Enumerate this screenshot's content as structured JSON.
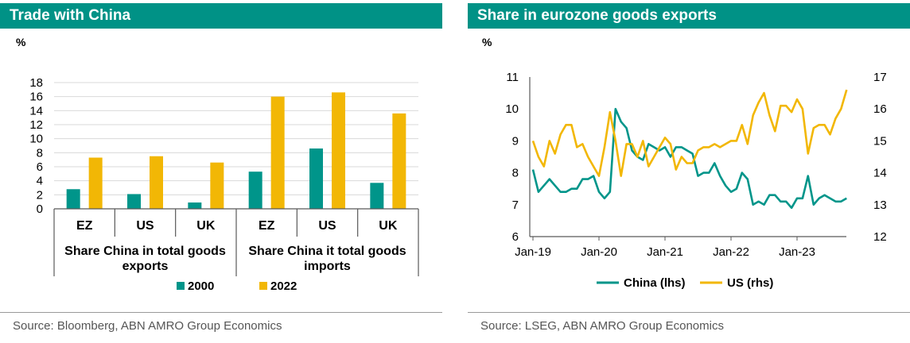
{
  "colors": {
    "header_bg": "#009286",
    "teal": "#00958a",
    "gold": "#f2b705",
    "grid": "#d9d9d9",
    "axis": "#595959"
  },
  "left": {
    "title": "Trade with China",
    "source": "Source: Bloomberg, ABN AMRO Group Economics",
    "chart_data": {
      "type": "bar",
      "ylabel": "%",
      "ylim": [
        0,
        18
      ],
      "yticks": [
        "0",
        "2",
        "4",
        "6",
        "8",
        "10",
        "12",
        "14",
        "16",
        "18"
      ],
      "grid": true,
      "categories": [
        "EZ",
        "US",
        "UK",
        "EZ",
        "US",
        "UK"
      ],
      "groups": [
        {
          "label": "Share China in total goods exports",
          "line1": "Share China in total goods",
          "line2": "exports"
        },
        {
          "label": "Share China it total goods imports",
          "line1": "Share China it total goods",
          "line2": "imports"
        }
      ],
      "series": [
        {
          "name": "2000",
          "color": "#00958a",
          "values": [
            2.8,
            2.1,
            0.9,
            5.3,
            8.6,
            3.7
          ]
        },
        {
          "name": "2022",
          "color": "#f2b705",
          "values": [
            7.3,
            7.5,
            6.6,
            16.0,
            16.6,
            13.6
          ]
        }
      ],
      "legend": "bottom"
    }
  },
  "right": {
    "title": "Share in eurozone goods exports",
    "source": "Source: LSEG, ABN AMRO Group Economics",
    "chart_data": {
      "type": "line",
      "ylabel": "%",
      "ylim_left": [
        6,
        11
      ],
      "ylim_right": [
        12,
        17
      ],
      "yticks_left": [
        "6",
        "7",
        "8",
        "9",
        "10",
        "11"
      ],
      "yticks_right": [
        "12",
        "13",
        "14",
        "15",
        "16",
        "17"
      ],
      "xticks": [
        "Jan-19",
        "Jan-20",
        "Jan-21",
        "Jan-22",
        "Jan-23"
      ],
      "x_start": "Jan-19",
      "grid": false,
      "legend": "bottom",
      "series": [
        {
          "name": "China (lhs)",
          "axis": "left",
          "color": "#00958a",
          "values": [
            8.1,
            7.4,
            7.6,
            7.8,
            7.6,
            7.4,
            7.4,
            7.5,
            7.5,
            7.8,
            7.8,
            7.9,
            7.4,
            7.2,
            7.4,
            10.0,
            9.6,
            9.4,
            8.7,
            8.5,
            8.4,
            8.9,
            8.8,
            8.7,
            8.8,
            8.5,
            8.8,
            8.8,
            8.7,
            8.6,
            7.9,
            8.0,
            8.0,
            8.3,
            7.9,
            7.6,
            7.4,
            7.5,
            8.0,
            7.8,
            7.0,
            7.1,
            7.0,
            7.3,
            7.3,
            7.1,
            7.1,
            6.9,
            7.2,
            7.2,
            7.9,
            7.0,
            7.2,
            7.3,
            7.2,
            7.1,
            7.1,
            7.2
          ]
        },
        {
          "name": "US (rhs)",
          "axis": "right",
          "color": "#f2b705",
          "values": [
            15.0,
            14.5,
            14.2,
            15.0,
            14.6,
            15.2,
            15.5,
            15.5,
            14.8,
            14.9,
            14.5,
            14.2,
            13.9,
            14.8,
            15.9,
            15.0,
            13.9,
            14.9,
            14.9,
            14.5,
            15.0,
            14.2,
            14.5,
            14.8,
            15.1,
            14.9,
            14.1,
            14.5,
            14.3,
            14.3,
            14.7,
            14.8,
            14.8,
            14.9,
            14.8,
            14.9,
            15.0,
            15.0,
            15.5,
            14.9,
            15.8,
            16.2,
            16.5,
            15.8,
            15.3,
            16.1,
            16.1,
            15.9,
            16.3,
            16.0,
            14.6,
            15.4,
            15.5,
            15.5,
            15.2,
            15.7,
            16.0,
            16.6
          ]
        }
      ]
    }
  }
}
